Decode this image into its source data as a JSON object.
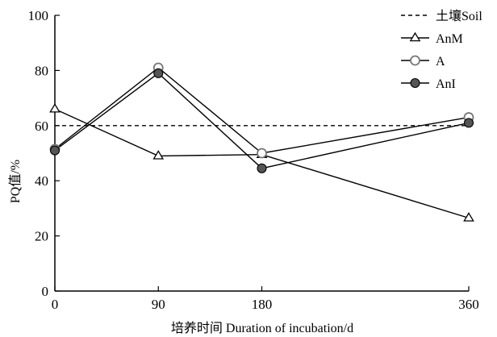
{
  "chart_data": {
    "type": "line",
    "title": "",
    "xlabel": "培养时间 Duration of incubation/d",
    "ylabel": "PQ值/%",
    "x": [
      0,
      90,
      180,
      360
    ],
    "x_tick_labels": [
      "0",
      "90",
      "180",
      "360"
    ],
    "ylim": [
      0,
      100
    ],
    "y_ticks": [
      0,
      20,
      40,
      60,
      80,
      100
    ],
    "y_tick_labels": [
      "0",
      "20",
      "40",
      "60",
      "80",
      "100"
    ],
    "grid": false,
    "legend_position": "top-right",
    "reference_lines": [
      {
        "name": "土壤Soil",
        "value": 60,
        "style": "dashed",
        "color": "#000000"
      }
    ],
    "series": [
      {
        "name": "AnM",
        "values": [
          66,
          49,
          49.5,
          26.5
        ],
        "marker": "triangle-open",
        "color": "#000000",
        "marker_fill": "#ffffff"
      },
      {
        "name": "A",
        "values": [
          51.5,
          81,
          50,
          63
        ],
        "marker": "circle-open",
        "color": "#000000",
        "marker_stroke": "#777777",
        "marker_fill": "#ffffff"
      },
      {
        "name": "AnI",
        "values": [
          51,
          79,
          44.5,
          61
        ],
        "marker": "circle-filled",
        "color": "#000000",
        "marker_fill": "#555555"
      }
    ]
  }
}
